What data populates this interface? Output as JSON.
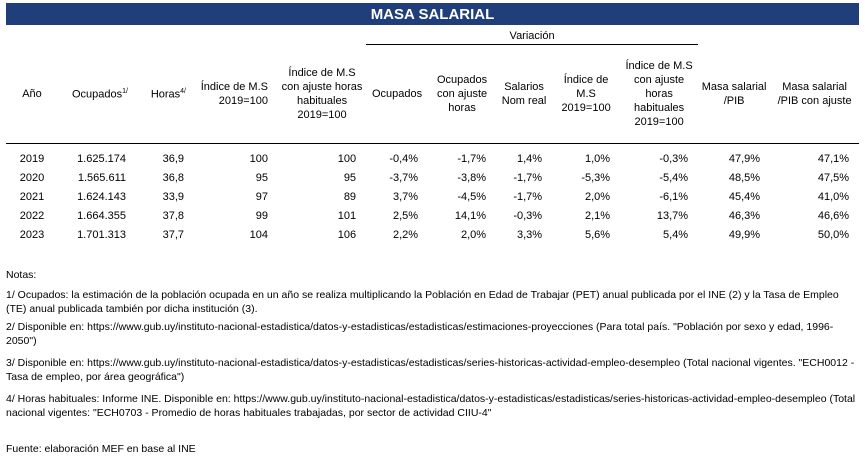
{
  "title": "MASA SALARIAL",
  "variacion_label": "Variación",
  "headers": {
    "anio": "Año",
    "ocupados": "Ocupados",
    "ocupados_sup": "1/",
    "horas": "Horas",
    "horas_sup": "4/",
    "indice_ms": "Índice de M.S 2019=100",
    "indice_ms_ajuste": "Índice de M.S con ajuste horas habituales 2019=100",
    "var_ocupados": "Ocupados",
    "var_ocupados_ajuste": "Ocupados con ajuste horas",
    "salarios_nom_real": "Salarios Nom real",
    "var_indice_ms": "Índice de M.S 2019=100",
    "var_indice_ms_ajuste": "Índice de M.S con ajuste horas habituales 2019=100",
    "masa_pib": "Masa salarial /PIB",
    "masa_pib_ajuste": "Masa salarial /PIB con ajuste"
  },
  "rows": [
    [
      "2019",
      "1.625.174",
      "36,9",
      "100",
      "100",
      "-0,4%",
      "-1,7%",
      "1,4%",
      "1,0%",
      "-0,3%",
      "47,9%",
      "47,1%"
    ],
    [
      "2020",
      "1.565.611",
      "36,8",
      "95",
      "95",
      "-3,7%",
      "-3,8%",
      "-1,7%",
      "-5,3%",
      "-5,4%",
      "48,5%",
      "47,5%"
    ],
    [
      "2021",
      "1.624.143",
      "33,9",
      "97",
      "89",
      "3,7%",
      "-4,5%",
      "-1,7%",
      "2,0%",
      "-6,1%",
      "45,4%",
      "41,0%"
    ],
    [
      "2022",
      "1.664.355",
      "37,8",
      "99",
      "101",
      "2,5%",
      "14,1%",
      "-0,3%",
      "2,1%",
      "13,7%",
      "46,3%",
      "46,6%"
    ],
    [
      "2023",
      "1.701.313",
      "37,7",
      "104",
      "106",
      "2,2%",
      "2,0%",
      "3,3%",
      "5,6%",
      "5,4%",
      "49,9%",
      "50,0%"
    ]
  ],
  "notes": {
    "heading": "Notas:",
    "n1": "1/ Ocupados: la estimación de la población ocupada en un año se realiza multiplicando la Población en Edad de Trabajar (PET) anual publicada por el INE (2) y la Tasa de Empleo (TE) anual publicada también por dicha institución (3).",
    "n2": "2/   Disponible en:  https://www.gub.uy/instituto-nacional-estadistica/datos-y-estadisticas/estadisticas/estimaciones-proyecciones (Para total país. \"Población por sexo y edad, 1996-2050\")",
    "n3": "3/ Disponible en: https://www.gub.uy/instituto-nacional-estadistica/datos-y-estadisticas/estadisticas/series-historicas-actividad-empleo-desempleo (Total nacional vigentes. \"ECH0012 - Tasa de empleo, por área geográfica\")",
    "n4": "4/ Horas habituales: Informe INE. Disponible en: https://www.gub.uy/instituto-nacional-estadistica/datos-y-estadisticas/estadisticas/series-historicas-actividad-empleo-desempleo (Total nacional vigentes: \"ECH0703 - Promedio de horas habituales trabajadas, por sector de actividad CIIU-4\"",
    "fuente": "Fuente: elaboración  MEF en base al INE"
  }
}
